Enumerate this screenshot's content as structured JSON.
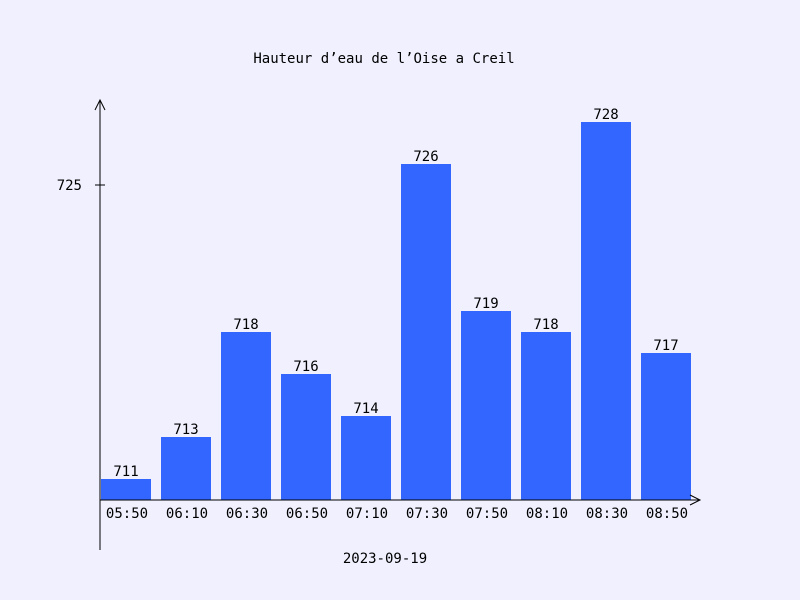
{
  "colors": {
    "background": "#f0f0ff",
    "bar": "#3366ff",
    "axis": "#000000"
  },
  "chart_data": {
    "type": "bar",
    "title": "Hauteur d’eau de l’Oise a Creil",
    "xlabel": "2023-09-19",
    "ylabel": "",
    "categories": [
      "05:50",
      "06:10",
      "06:30",
      "06:50",
      "07:10",
      "07:30",
      "07:50",
      "08:10",
      "08:30",
      "08:50"
    ],
    "values": [
      711,
      713,
      718,
      716,
      714,
      726,
      719,
      718,
      728,
      717
    ],
    "data_labels": [
      "711",
      "713",
      "718",
      "716",
      "714",
      "726",
      "719",
      "718",
      "728",
      "717"
    ],
    "yticks": [
      725
    ],
    "ytick_labels": [
      "725"
    ],
    "ylim": [
      710,
      730
    ],
    "grid": false,
    "legend": "none"
  }
}
